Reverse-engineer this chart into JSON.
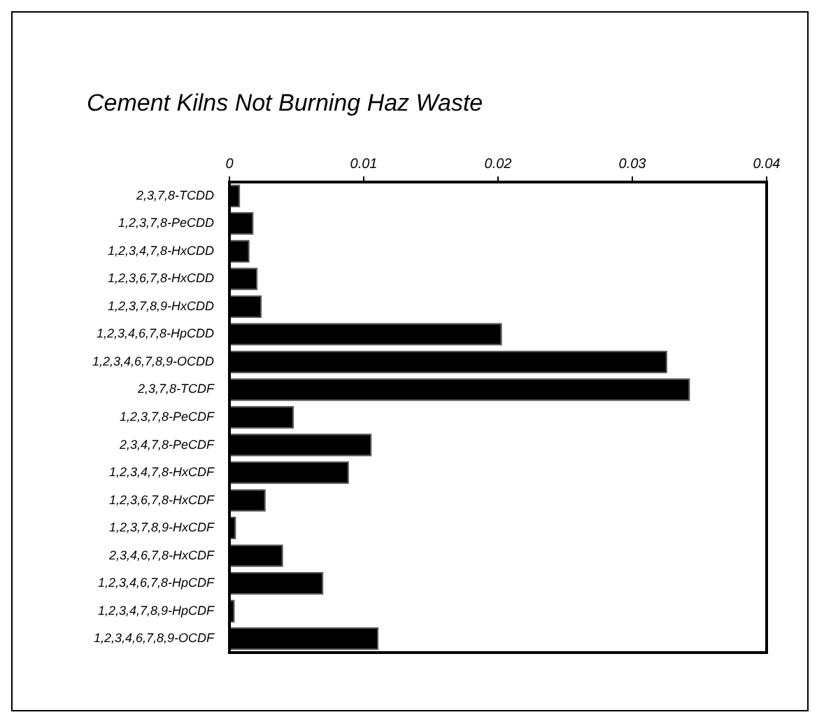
{
  "chart_data": {
    "type": "bar",
    "orientation": "horizontal",
    "title": "Cement Kilns Not Burning Haz Waste",
    "categories": [
      "2,3,7,8-TCDD",
      "1,2,3,7,8-PeCDD",
      "1,2,3,4,7,8-HxCDD",
      "1,2,3,6,7,8-HxCDD",
      "1,2,3,7,8,9-HxCDD",
      "1,2,3,4,6,7,8-HpCDD",
      "1,2,3,4,6,7,8,9-OCDD",
      "2,3,7,8-TCDF",
      "1,2,3,7,8-PeCDF",
      "2,3,4,7,8-PeCDF",
      "1,2,3,4,7,8-HxCDF",
      "1,2,3,6,7,8-HxCDF",
      "1,2,3,7,8,9-HxCDF",
      "2,3,4,6,7,8-HxCDF",
      "1,2,3,4,6,7,8-HpCDF",
      "1,2,3,4,7,8,9-HpCDF",
      "1,2,3,4,6,7,8,9-OCDF"
    ],
    "values": [
      0.0008,
      0.0018,
      0.0015,
      0.0021,
      0.0024,
      0.0203,
      0.0326,
      0.0343,
      0.0048,
      0.0106,
      0.0089,
      0.0027,
      0.0005,
      0.004,
      0.007,
      0.0004,
      0.0111
    ],
    "color": "#000000",
    "xlim": [
      0,
      0.04
    ],
    "xticks": [
      0,
      0.01,
      0.02,
      0.03,
      0.04
    ],
    "grid": false,
    "legend": false
  }
}
